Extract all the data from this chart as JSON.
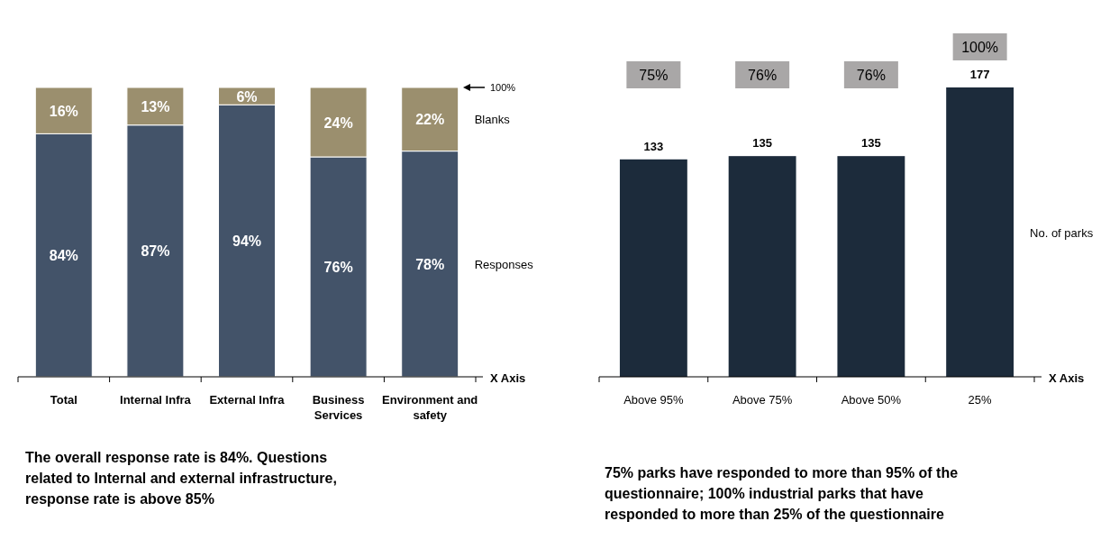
{
  "chart_data": [
    {
      "type": "bar",
      "stacked": true,
      "categories": [
        "Total",
        "Internal Infra",
        "External Infra",
        "Business Services",
        "Environment and safety"
      ],
      "xlabel": "X Axis",
      "legend": "right",
      "series": [
        {
          "name": "Responses",
          "color": "#435369",
          "values": [
            84,
            87,
            94,
            76,
            78
          ],
          "value_labels": [
            "84%",
            "87%",
            "94%",
            "76%",
            "78%"
          ]
        },
        {
          "name": "Blanks",
          "color": "#9b8f6e",
          "values": [
            16,
            13,
            6,
            24,
            22
          ],
          "value_labels": [
            "16%",
            "13%",
            "6%",
            "24%",
            "22%"
          ]
        }
      ],
      "annotations": [
        "100%",
        "The overall response rate is 84%. Questions related to Internal and external infrastructure, response rate is above 85%"
      ]
    },
    {
      "type": "bar",
      "categories": [
        "Above 95%",
        "Above 75%",
        "Above 50%",
        "25%"
      ],
      "xlabel": "X Axis",
      "legend": "right",
      "data_labels": true,
      "series": [
        {
          "name": "No. of parks",
          "color": "#1c2b3b",
          "values": [
            133,
            135,
            135,
            177
          ]
        }
      ],
      "annotations": [
        "75%",
        "76%",
        "76%",
        "100%",
        "75% parks have responded to more than 95% of the questionnaire; 100% industrial parks that have responded to more than 25% of the questionnaire"
      ]
    }
  ]
}
